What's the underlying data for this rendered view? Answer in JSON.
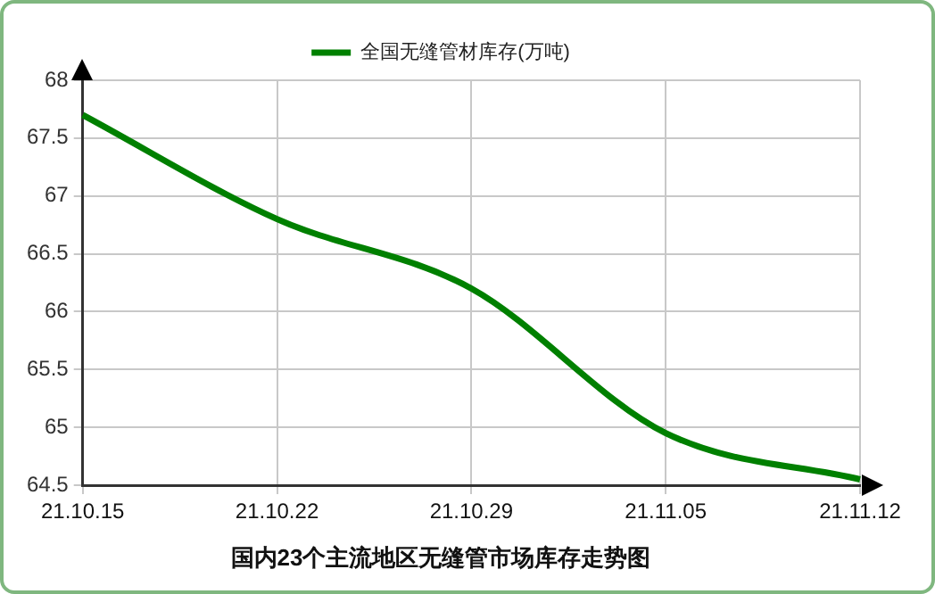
{
  "chart_data": {
    "type": "line",
    "title": "国内23个主流地区无缝管市场库存走势图",
    "categories": [
      "21.10.15",
      "21.10.22",
      "21.10.29",
      "21.11.05",
      "21.11.12"
    ],
    "series": [
      {
        "name": "全国无缝管材库存(万吨)",
        "color": "#008000",
        "values": [
          67.7,
          66.8,
          66.2,
          64.95,
          64.55
        ]
      }
    ],
    "ylim": [
      64.5,
      68
    ],
    "yticks": [
      64.5,
      65,
      65.5,
      66,
      66.5,
      67,
      67.5,
      68
    ],
    "grid": true,
    "legend": "top",
    "marker": "none",
    "line_style": "solid"
  }
}
